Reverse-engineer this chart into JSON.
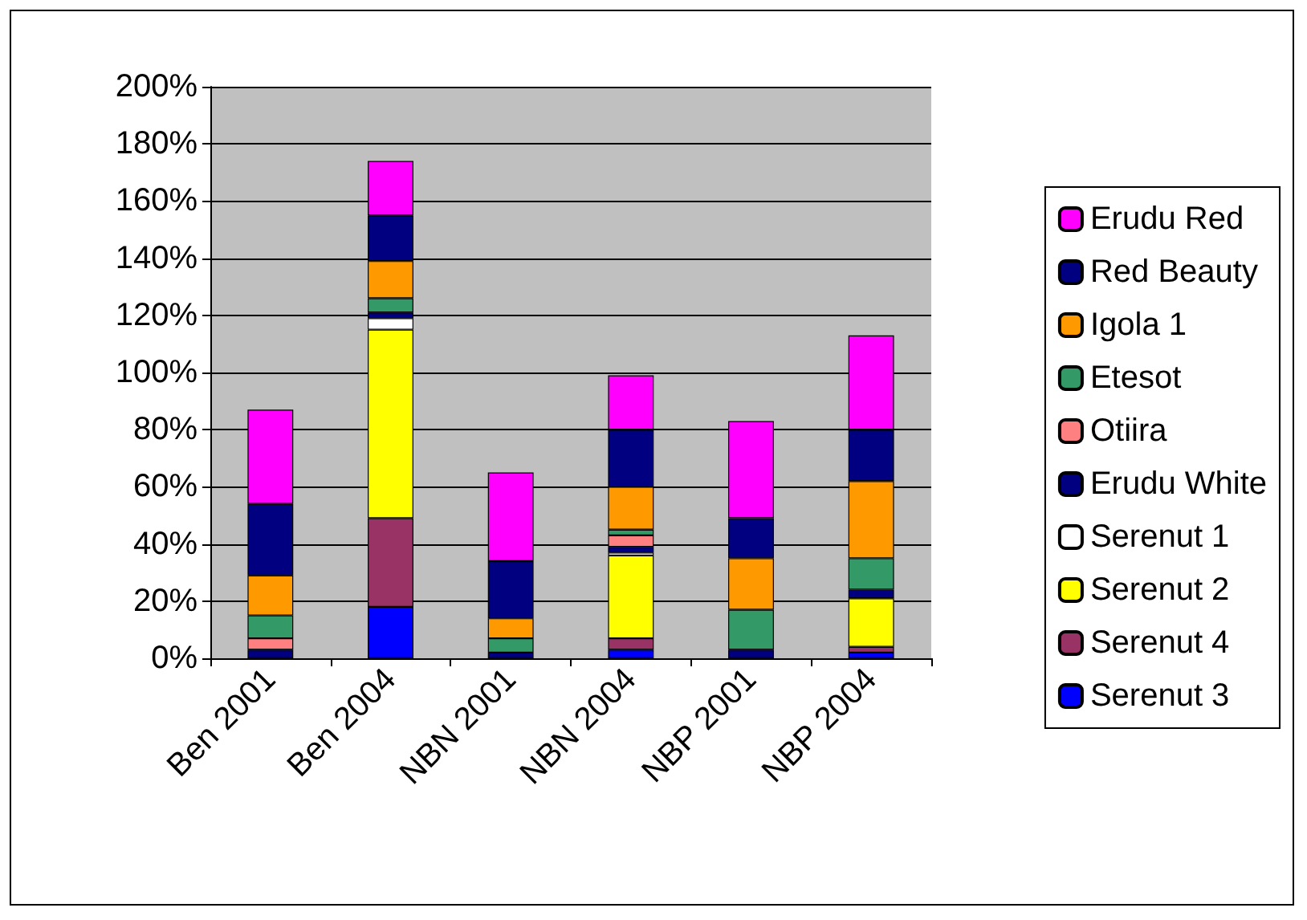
{
  "chart_data": {
    "type": "bar",
    "stacked": true,
    "categories": [
      "Ben 2001",
      "Ben 2004",
      "NBN 2001",
      "NBN 2004",
      "NBP 2001",
      "NBP 2004"
    ],
    "series": [
      {
        "name": "Serenut 3",
        "color": "#0000ff",
        "values": [
          0,
          18,
          0,
          3,
          0,
          2
        ]
      },
      {
        "name": "Serenut 4",
        "color": "#993366",
        "values": [
          0,
          31,
          0,
          4,
          0,
          2
        ]
      },
      {
        "name": "Serenut 2",
        "color": "#ffff00",
        "values": [
          0,
          66,
          0,
          29,
          0,
          17
        ]
      },
      {
        "name": "Serenut 1",
        "color": "#ffffff",
        "values": [
          0,
          4,
          0,
          1,
          0,
          0
        ]
      },
      {
        "name": "Erudu White",
        "color": "#000080",
        "values": [
          3,
          2,
          2,
          2,
          3,
          3
        ]
      },
      {
        "name": "Otiira",
        "color": "#ff8080",
        "values": [
          4,
          0,
          0,
          4,
          0,
          0
        ]
      },
      {
        "name": "Etesot",
        "color": "#339966",
        "values": [
          8,
          5,
          5,
          2,
          14,
          11
        ]
      },
      {
        "name": "Igola 1",
        "color": "#ff9900",
        "values": [
          14,
          13,
          7,
          15,
          18,
          27
        ]
      },
      {
        "name": "Red Beauty",
        "color": "#000080",
        "values": [
          25,
          16,
          20,
          20,
          14,
          18
        ]
      },
      {
        "name": "Erudu Red",
        "color": "#ff00ff",
        "values": [
          33,
          19,
          31,
          19,
          34,
          33
        ]
      }
    ],
    "ylim": [
      0,
      200
    ],
    "yticks": [
      {
        "value": 0,
        "label": "0%"
      },
      {
        "value": 20,
        "label": "20%"
      },
      {
        "value": 40,
        "label": "40%"
      },
      {
        "value": 60,
        "label": "60%"
      },
      {
        "value": 80,
        "label": "80%"
      },
      {
        "value": 100,
        "label": "100%"
      },
      {
        "value": 120,
        "label": "120%"
      },
      {
        "value": 140,
        "label": "140%"
      },
      {
        "value": 160,
        "label": "160%"
      },
      {
        "value": 180,
        "label": "180%"
      },
      {
        "value": 200,
        "label": "200%"
      }
    ],
    "grid": "y",
    "legend": "right"
  }
}
